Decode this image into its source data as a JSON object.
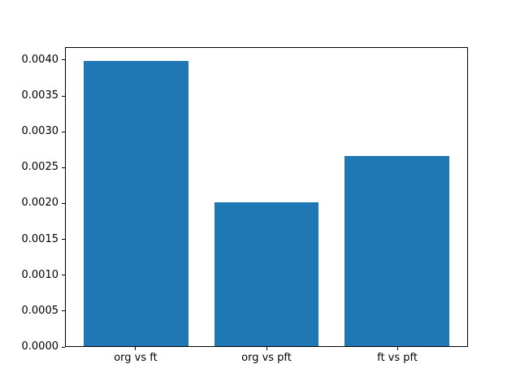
{
  "chart_data": {
    "type": "bar",
    "categories": [
      "org vs ft",
      "org vs pft",
      "ft vs pft"
    ],
    "values": [
      0.004,
      0.00202,
      0.00267
    ],
    "title": "",
    "xlabel": "",
    "ylabel": "",
    "ylim": [
      0,
      0.00418
    ],
    "xlim": [
      -0.54,
      2.54
    ],
    "yticks": [
      0.0,
      0.0005,
      0.001,
      0.0015,
      0.002,
      0.0025,
      0.003,
      0.0035,
      0.004
    ],
    "ytick_labels": [
      "0.0000",
      "0.0005",
      "0.0010",
      "0.0015",
      "0.0020",
      "0.0025",
      "0.0030",
      "0.0035",
      "0.0040"
    ],
    "bar_width": 0.8,
    "bar_color": "#1f77b4",
    "background_color": "#ffffff",
    "spine_color": "#000000",
    "grid": false,
    "legend": false
  }
}
